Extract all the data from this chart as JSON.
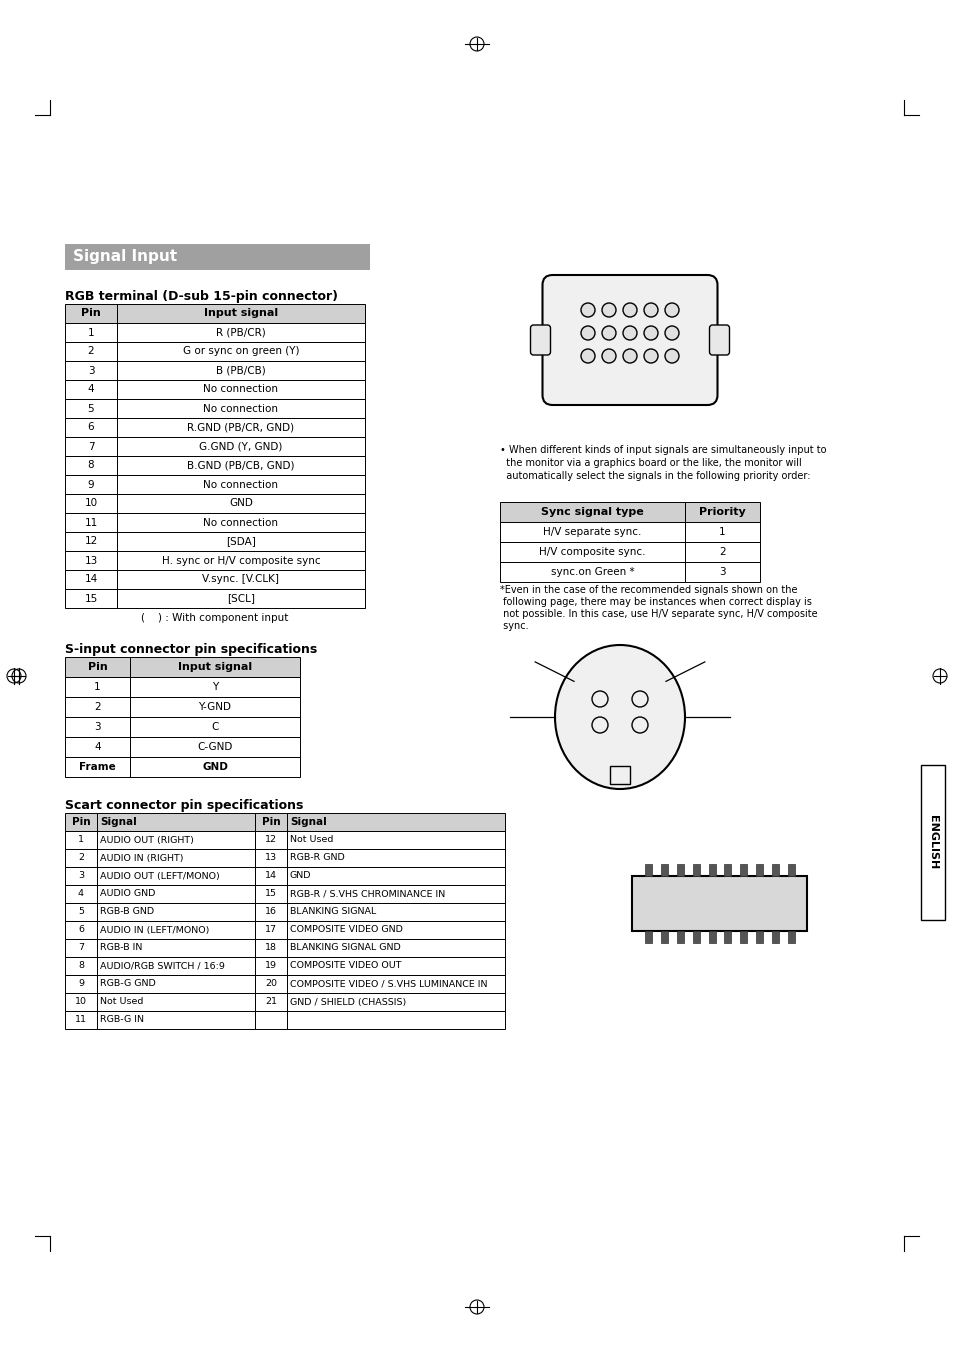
{
  "page_bg": "#ffffff",
  "title": "Signal Input",
  "title_bg": "#9e9e9e",
  "title_color": "#ffffff",
  "section1_title": "RGB terminal (D-sub 15-pin connector)",
  "rgb_table_headers": [
    "Pin",
    "Input signal"
  ],
  "rgb_table_rows": [
    [
      "1",
      "R (PB/CR)"
    ],
    [
      "2",
      "G or sync on green (Y)"
    ],
    [
      "3",
      "B (PB/CB)"
    ],
    [
      "4",
      "No connection"
    ],
    [
      "5",
      "No connection"
    ],
    [
      "6",
      "R.GND (PB/CR, GND)"
    ],
    [
      "7",
      "G.GND (Y, GND)"
    ],
    [
      "8",
      "B.GND (PB/CB, GND)"
    ],
    [
      "9",
      "No connection"
    ],
    [
      "10",
      "GND"
    ],
    [
      "11",
      "No connection"
    ],
    [
      "12",
      "[SDA]"
    ],
    [
      "13",
      "H. sync or H/V composite sync"
    ],
    [
      "14",
      "V.sync. [V.CLK]"
    ],
    [
      "15",
      "[SCL]"
    ]
  ],
  "component_note": "(    ) : With component input",
  "sync_bullet_lines": [
    "• When different kinds of input signals are simultaneously input to",
    "  the monitor via a graphics board or the like, the monitor will",
    "  automatically select the signals in the following priority order:"
  ],
  "sync_table_headers": [
    "Sync signal type",
    "Priority"
  ],
  "sync_table_rows": [
    [
      "H/V separate sync.",
      "1"
    ],
    [
      "H/V composite sync.",
      "2"
    ],
    [
      "sync.on Green *",
      "3"
    ]
  ],
  "sync_footnote_lines": [
    "*Even in the case of the recommended signals shown on the",
    " following page, there may be instances when correct display is",
    " not possible. In this case, use H/V separate sync, H/V composite",
    " sync."
  ],
  "section2_title": "S-input connector pin specifications",
  "sinput_table_headers": [
    "Pin",
    "Input signal"
  ],
  "sinput_table_rows": [
    [
      "1",
      "Y"
    ],
    [
      "2",
      "Y-GND"
    ],
    [
      "3",
      "C"
    ],
    [
      "4",
      "C-GND"
    ],
    [
      "Frame",
      "GND"
    ]
  ],
  "section3_title": "Scart connector pin specifications",
  "scart_table_headers": [
    "Pin",
    "Signal",
    "Pin",
    "Signal"
  ],
  "scart_table_rows": [
    [
      "1",
      "AUDIO OUT (RIGHT)",
      "12",
      "Not Used"
    ],
    [
      "2",
      "AUDIO IN (RIGHT)",
      "13",
      "RGB-R GND"
    ],
    [
      "3",
      "AUDIO OUT (LEFT/MONO)",
      "14",
      "GND"
    ],
    [
      "4",
      "AUDIO GND",
      "15",
      "RGB-R / S.VHS CHROMINANCE IN"
    ],
    [
      "5",
      "RGB-B GND",
      "16",
      "BLANKING SIGNAL"
    ],
    [
      "6",
      "AUDIO IN (LEFT/MONO)",
      "17",
      "COMPOSITE VIDEO GND"
    ],
    [
      "7",
      "RGB-B IN",
      "18",
      "BLANKING SIGNAL GND"
    ],
    [
      "8",
      "AUDIO/RGB SWITCH / 16:9",
      "19",
      "COMPOSITE VIDEO OUT"
    ],
    [
      "9",
      "RGB-G GND",
      "20",
      "COMPOSITE VIDEO / S.VHS LUMINANCE IN"
    ],
    [
      "10",
      "Not Used",
      "21",
      "GND / SHIELD (CHASSIS)"
    ],
    [
      "11",
      "RGB-G IN",
      "",
      ""
    ]
  ],
  "english_label": "ENGLISH"
}
